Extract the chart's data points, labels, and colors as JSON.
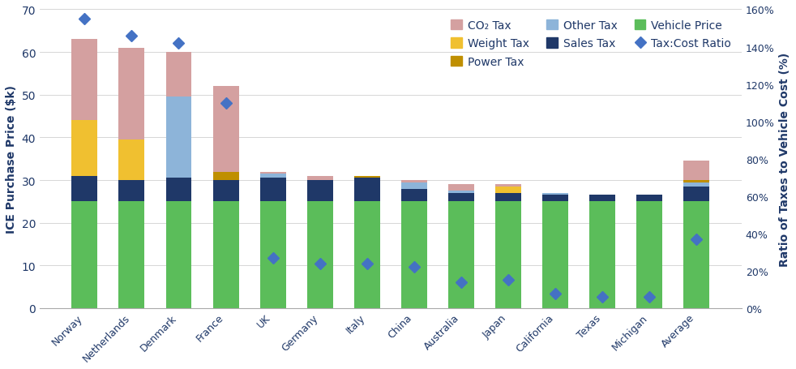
{
  "categories": [
    "Norway",
    "Netherlands",
    "Denmark",
    "France",
    "UK",
    "Germany",
    "Italy",
    "China",
    "Australia",
    "Japan",
    "California",
    "Texas",
    "Michigan",
    "Average"
  ],
  "vehicle_price": [
    25,
    25,
    25,
    25,
    25,
    25,
    25,
    25,
    25,
    25,
    25,
    25,
    25,
    25
  ],
  "sales_tax": [
    6.0,
    5.0,
    5.5,
    5.0,
    5.5,
    5.0,
    5.5,
    3.0,
    2.0,
    2.0,
    1.5,
    1.5,
    1.5,
    3.5
  ],
  "other_tax": [
    0.0,
    0.0,
    19.0,
    0.0,
    1.0,
    0.0,
    0.0,
    1.5,
    0.5,
    0.0,
    0.5,
    0.0,
    0.0,
    1.0
  ],
  "weight_tax": [
    13.0,
    9.5,
    0.0,
    0.0,
    0.0,
    0.0,
    0.0,
    0.0,
    0.0,
    1.5,
    0.0,
    0.0,
    0.0,
    0.0
  ],
  "power_tax": [
    0.0,
    0.0,
    0.0,
    2.0,
    0.0,
    0.0,
    0.5,
    0.0,
    0.0,
    0.0,
    0.0,
    0.0,
    0.0,
    0.5
  ],
  "co2_tax": [
    19.0,
    21.5,
    10.5,
    20.0,
    0.5,
    1.0,
    0.0,
    0.5,
    1.5,
    0.5,
    0.0,
    0.0,
    0.0,
    4.5
  ],
  "tax_ratio": [
    1.55,
    1.46,
    1.42,
    1.1,
    0.27,
    0.24,
    0.24,
    0.22,
    0.14,
    0.15,
    0.08,
    0.06,
    0.06,
    0.37
  ],
  "colors": {
    "vehicle_price": "#5BBD5A",
    "sales_tax": "#1F3868",
    "other_tax": "#8DB4D9",
    "weight_tax": "#F0C030",
    "power_tax": "#BF8F00",
    "co2_tax": "#D4A0A0",
    "ratio_marker": "#4472C4"
  },
  "ylabel_left": "ICE Purchase Price ($k)",
  "ylabel_right": "Ratio of Taxes to Vehicle Cost (%)",
  "ylim_left": [
    0,
    70
  ],
  "ylim_right": [
    0,
    1.6
  ],
  "yticks_left": [
    0,
    10,
    20,
    30,
    40,
    50,
    60,
    70
  ],
  "yticks_right_labels": [
    "0%",
    "20%",
    "40%",
    "60%",
    "80%",
    "100%",
    "120%",
    "140%",
    "160%"
  ],
  "yticks_right_vals": [
    0.0,
    0.2,
    0.4,
    0.6,
    0.8,
    1.0,
    1.2,
    1.4,
    1.6
  ],
  "background_color": "#ffffff",
  "text_color": "#1F3868",
  "legend_entries": [
    "CO₂ Tax",
    "Weight Tax",
    "Power Tax",
    "Other Tax",
    "Sales Tax",
    "Vehicle Price",
    "Tax:Cost Ratio"
  ]
}
